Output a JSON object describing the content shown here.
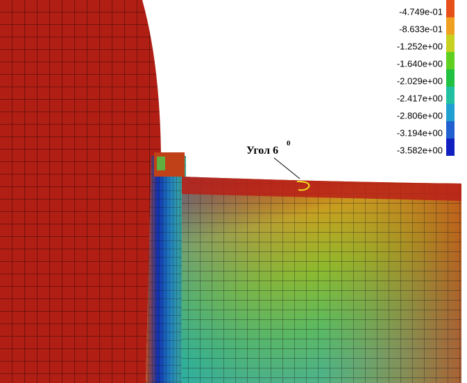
{
  "legend": {
    "labels": [
      "-4.749e-01",
      "-8.633e-01",
      "-1.252e+00",
      "-1.640e+00",
      "-2.029e+00",
      "-2.417e+00",
      "-2.806e+00",
      "-3.194e+00",
      "-3.582e+00"
    ]
  },
  "annotation": {
    "text": "Угол 6",
    "superscript": "0"
  }
}
